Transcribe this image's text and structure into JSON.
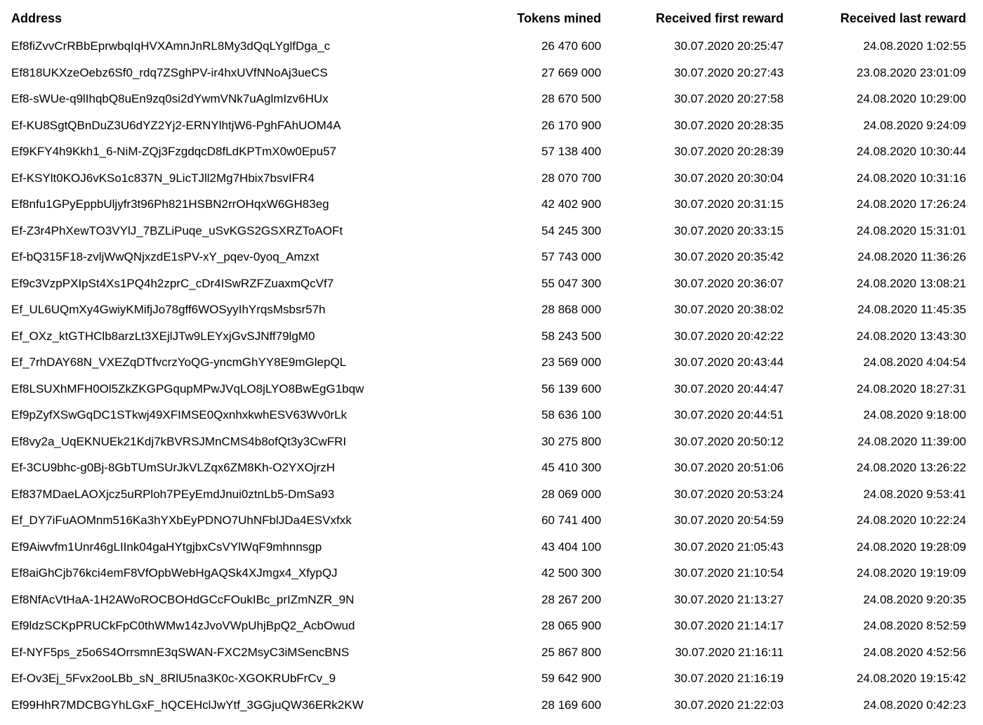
{
  "table": {
    "columns": {
      "address": "Address",
      "tokens": "Tokens mined",
      "first": "Received first reward",
      "last": "Received last reward"
    },
    "rows": [
      {
        "address": "Ef8fiZvvCrRBbEprwbqIqHVXAmnJnRL8My3dQqLYglfDga_c",
        "tokens": "26 470 600",
        "first": "30.07.2020 20:25:47",
        "last": "24.08.2020 1:02:55"
      },
      {
        "address": "Ef818UKXzeOebz6Sf0_rdq7ZSghPV-ir4hxUVfNNoAj3ueCS",
        "tokens": "27 669 000",
        "first": "30.07.2020 20:27:43",
        "last": "23.08.2020 23:01:09"
      },
      {
        "address": "Ef8-sWUe-q9lIhqbQ8uEn9zq0si2dYwmVNk7uAglmIzv6HUx",
        "tokens": "28 670 500",
        "first": "30.07.2020 20:27:58",
        "last": "24.08.2020 10:29:00"
      },
      {
        "address": "Ef-KU8SgtQBnDuZ3U6dYZ2Yj2-ERNYlhtjW6-PghFAhUOM4A",
        "tokens": "26 170 900",
        "first": "30.07.2020 20:28:35",
        "last": "24.08.2020 9:24:09"
      },
      {
        "address": "Ef9KFY4h9Kkh1_6-NiM-ZQj3FzgdqcD8fLdKPTmX0w0Epu57",
        "tokens": "57 138 400",
        "first": "30.07.2020 20:28:39",
        "last": "24.08.2020 10:30:44"
      },
      {
        "address": "Ef-KSYlt0KOJ6vKSo1c837N_9LicTJll2Mg7Hbix7bsvIFR4",
        "tokens": "28 070 700",
        "first": "30.07.2020 20:30:04",
        "last": "24.08.2020 10:31:16"
      },
      {
        "address": "Ef8nfu1GPyEppbUljyfr3t96Ph821HSBN2rrOHqxW6GH83eg",
        "tokens": "42 402 900",
        "first": "30.07.2020 20:31:15",
        "last": "24.08.2020 17:26:24"
      },
      {
        "address": "Ef-Z3r4PhXewTO3VYlJ_7BZLiPuqe_uSvKGS2GSXRZToAOFt",
        "tokens": "54 245 300",
        "first": "30.07.2020 20:33:15",
        "last": "24.08.2020 15:31:01"
      },
      {
        "address": "Ef-bQ315F18-zvljWwQNjxzdE1sPV-xY_pqev-0yoq_Amzxt",
        "tokens": "57 743 000",
        "first": "30.07.2020 20:35:42",
        "last": "24.08.2020 11:36:26"
      },
      {
        "address": "Ef9c3VzpPXIpSt4Xs1PQ4h2zprC_cDr4ISwRZFZuaxmQcVf7",
        "tokens": "55 047 300",
        "first": "30.07.2020 20:36:07",
        "last": "24.08.2020 13:08:21"
      },
      {
        "address": "Ef_UL6UQmXy4GwiyKMifjJo78gff6WOSyyIhYrqsMsbsr57h",
        "tokens": "28 868 000",
        "first": "30.07.2020 20:38:02",
        "last": "24.08.2020 11:45:35"
      },
      {
        "address": "Ef_OXz_ktGTHClb8arzLt3XEjlJTw9LEYxjGvSJNff79lgM0",
        "tokens": "58 243 500",
        "first": "30.07.2020 20:42:22",
        "last": "24.08.2020 13:43:30"
      },
      {
        "address": "Ef_7rhDAY68N_VXEZqDTfvcrzYoQG-yncmGhYY8E9mGlepQL",
        "tokens": "23 569 000",
        "first": "30.07.2020 20:43:44",
        "last": "24.08.2020 4:04:54"
      },
      {
        "address": "Ef8LSUXhMFH0Ol5ZkZKGPGqupMPwJVqLO8jLYO8BwEgG1bqw",
        "tokens": "56 139 600",
        "first": "30.07.2020 20:44:47",
        "last": "24.08.2020 18:27:31"
      },
      {
        "address": "Ef9pZyfXSwGqDC1STkwj49XFIMSE0QxnhxkwhESV63Wv0rLk",
        "tokens": "58 636 100",
        "first": "30.07.2020 20:44:51",
        "last": "24.08.2020 9:18:00"
      },
      {
        "address": "Ef8vy2a_UqEKNUEk21Kdj7kBVRSJMnCMS4b8ofQt3y3CwFRI",
        "tokens": "30 275 800",
        "first": "30.07.2020 20:50:12",
        "last": "24.08.2020 11:39:00"
      },
      {
        "address": "Ef-3CU9bhc-g0Bj-8GbTUmSUrJkVLZqx6ZM8Kh-O2YXOjrzH",
        "tokens": "45 410 300",
        "first": "30.07.2020 20:51:06",
        "last": "24.08.2020 13:26:22"
      },
      {
        "address": "Ef837MDaeLAOXjcz5uRPloh7PEyEmdJnui0ztnLb5-DmSa93",
        "tokens": "28 069 000",
        "first": "30.07.2020 20:53:24",
        "last": "24.08.2020 9:53:41"
      },
      {
        "address": "Ef_DY7iFuAOMnm516Ka3hYXbEyPDNO7UhNFblJDa4ESVxfxk",
        "tokens": "60 741 400",
        "first": "30.07.2020 20:54:59",
        "last": "24.08.2020 10:22:24"
      },
      {
        "address": "Ef9Aiwvfm1Unr46gLIInk04gaHYtgjbxCsVYlWqF9mhnnsgp",
        "tokens": "43 404 100",
        "first": "30.07.2020 21:05:43",
        "last": "24.08.2020 19:28:09"
      },
      {
        "address": "Ef8aiGhCjb76kci4emF8VfOpbWebHgAQSk4XJmgx4_XfypQJ",
        "tokens": "42 500 300",
        "first": "30.07.2020 21:10:54",
        "last": "24.08.2020 19:19:09"
      },
      {
        "address": "Ef8NfAcVtHaA-1H2AWoROCBOHdGCcFOukIBc_prIZmNZR_9N",
        "tokens": "28 267 200",
        "first": "30.07.2020 21:13:27",
        "last": "24.08.2020 9:20:35"
      },
      {
        "address": "Ef9ldzSCKpPRUCkFpC0thWMw14zJvoVWpUhjBpQ2_AcbOwud",
        "tokens": "28 065 900",
        "first": "30.07.2020 21:14:17",
        "last": "24.08.2020 8:52:59"
      },
      {
        "address": "Ef-NYF5ps_z5o6S4OrrsmnE3qSWAN-FXC2MsyC3iMSencBNS",
        "tokens": "25 867 800",
        "first": "30.07.2020 21:16:11",
        "last": "24.08.2020 4:52:56"
      },
      {
        "address": "Ef-Ov3Ej_5Fvx2ooLBb_sN_8RlU5na3K0c-XGOKRUbFrCv_9",
        "tokens": "59 642 900",
        "first": "30.07.2020 21:16:19",
        "last": "24.08.2020 19:15:42"
      },
      {
        "address": "Ef99HhR7MDCBGYhLGxF_hQCEHclJwYtf_3GGjuQW36ERk2KW",
        "tokens": "28 169 600",
        "first": "30.07.2020 21:22:03",
        "last": "24.08.2020 0:42:23"
      }
    ]
  }
}
